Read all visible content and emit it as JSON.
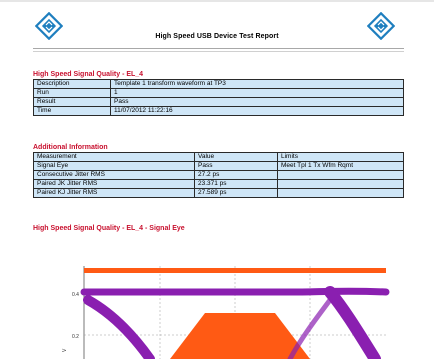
{
  "report": {
    "title": "High Speed USB Device Test Report"
  },
  "section1": {
    "title": "High Speed Signal Quality - EL_4",
    "rows": [
      {
        "label": "Description",
        "value": "Template 1 transform waveform at TP3"
      },
      {
        "label": "Run",
        "value": "1"
      },
      {
        "label": "Result",
        "value": "Pass"
      },
      {
        "label": "Time",
        "value": "11/07/2012 11:22:16"
      }
    ]
  },
  "section2": {
    "title": "Additional Information",
    "headers": [
      "Measurement",
      "Value",
      "Limits"
    ],
    "rows": [
      {
        "measurement": "Signal Eye",
        "value": "Pass",
        "limits": "Meet Tpl 1 Tx Wfm Rqmt"
      },
      {
        "measurement": "Consecutive Jitter RMS",
        "value": "27.2 ps",
        "limits": ""
      },
      {
        "measurement": "Paired JK Jitter RMS",
        "value": "23.371 ps",
        "limits": ""
      },
      {
        "measurement": "Paired KJ Jitter RMS",
        "value": "27.589 ps",
        "limits": ""
      }
    ]
  },
  "section3": {
    "title": "High Speed Signal Quality - EL_4 - Signal Eye"
  },
  "eye_chart": {
    "y_ticks": [
      "0.4",
      "0.2"
    ],
    "y_label": "V",
    "colors": {
      "limit": "#ff5a14",
      "trace": "#8a1fb0",
      "mask": "#ff5a14",
      "grid": "#9a9a9a"
    }
  },
  "colors": {
    "section_title": "#c8102e",
    "table_fill": "#cfe6f7",
    "logo": "#1f7fbf"
  }
}
